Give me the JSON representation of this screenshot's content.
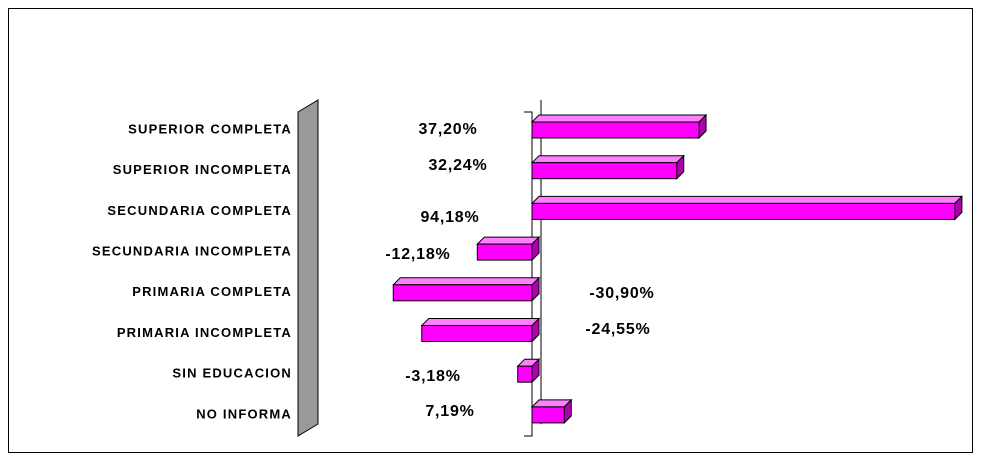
{
  "chart_data": {
    "type": "bar",
    "orientation": "horizontal",
    "categories": [
      "SUPERIOR COMPLETA",
      "SUPERIOR INCOMPLETA",
      "SECUNDARIA COMPLETA",
      "SECUNDARIA INCOMPLETA",
      "PRIMARIA COMPLETA",
      "PRIMARIA INCOMPLETA",
      "SIN EDUCACION",
      "NO INFORMA"
    ],
    "values": [
      37.2,
      32.24,
      94.18,
      -12.18,
      -30.9,
      -24.55,
      -3.18,
      7.19
    ],
    "value_labels": [
      "37,20%",
      "32,24%",
      "94,18%",
      "-12,18%",
      "-30,90%",
      "-24,55%",
      "-3,18%",
      "7,19%"
    ],
    "color": "#ff00ff"
  }
}
